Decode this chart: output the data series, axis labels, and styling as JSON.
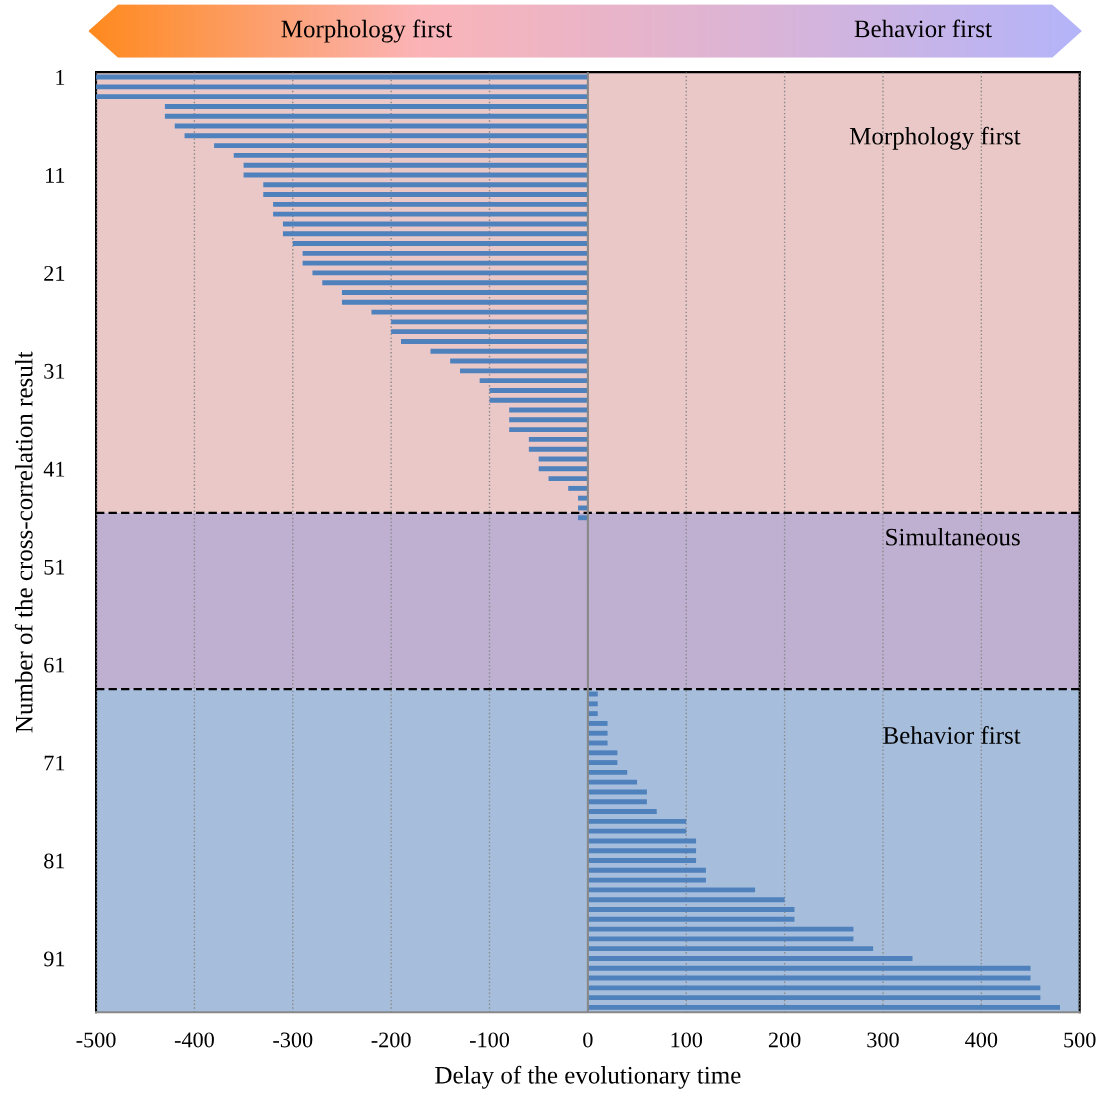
{
  "chart_data": {
    "type": "bar",
    "orientation": "horizontal",
    "xlabel": "Delay of the evolutionary time",
    "ylabel": "Number of the cross-correlation result",
    "annotations": [
      "Morphology first",
      "Behavior first"
    ],
    "x": [
      1,
      2,
      3,
      4,
      5,
      6,
      7,
      8,
      9,
      10,
      11,
      12,
      13,
      14,
      15,
      16,
      17,
      18,
      19,
      20,
      21,
      22,
      23,
      24,
      25,
      26,
      27,
      28,
      29,
      30,
      31,
      32,
      33,
      34,
      35,
      36,
      37,
      38,
      39,
      40,
      41,
      42,
      43,
      44,
      45,
      46,
      47,
      48,
      49,
      50,
      51,
      52,
      53,
      54,
      55,
      56,
      57,
      58,
      59,
      60,
      61,
      62,
      63,
      64,
      65,
      66,
      67,
      68,
      69,
      70,
      71,
      72,
      73,
      74,
      75,
      76,
      77,
      78,
      79,
      80,
      81,
      82,
      83,
      84,
      85,
      86,
      87,
      88,
      89,
      90,
      91,
      92,
      93,
      94,
      95,
      96
    ],
    "values": [
      -500,
      -500,
      -500,
      -430,
      -430,
      -420,
      -410,
      -380,
      -360,
      -350,
      -350,
      -330,
      -330,
      -320,
      -320,
      -310,
      -310,
      -300,
      -290,
      -290,
      -280,
      -270,
      -250,
      -250,
      -220,
      -200,
      -200,
      -190,
      -160,
      -140,
      -130,
      -110,
      -100,
      -100,
      -80,
      -80,
      -80,
      -60,
      -60,
      -50,
      -50,
      -40,
      -20,
      -10,
      -10,
      -10,
      0,
      0,
      0,
      0,
      0,
      0,
      0,
      0,
      0,
      0,
      0,
      0,
      0,
      0,
      0,
      0,
      0,
      10,
      10,
      10,
      20,
      20,
      20,
      30,
      30,
      40,
      50,
      60,
      60,
      70,
      100,
      100,
      110,
      110,
      110,
      120,
      120,
      170,
      200,
      210,
      210,
      270,
      270,
      290,
      330,
      450,
      450,
      460,
      460,
      480
    ],
    "color": "#4f81bd",
    "xlim": [
      -500,
      500
    ],
    "xticks": [
      -500,
      -400,
      -300,
      -200,
      -100,
      0,
      100,
      200,
      300,
      400,
      500
    ],
    "ylim": [
      96.5,
      0.5
    ],
    "yticks": [
      1,
      11,
      21,
      31,
      41,
      51,
      61,
      71,
      81,
      91
    ],
    "grid": "x",
    "bands": [
      {
        "axis": "y",
        "from": 0.5,
        "to": 45.5,
        "label": "Morphology first",
        "color": "#eac8c8"
      },
      {
        "axis": "y",
        "from": 45.5,
        "to": 63.5,
        "label": "Simultaneous",
        "color": "#bfb0d2"
      },
      {
        "axis": "y",
        "from": 63.5,
        "to": 96.5,
        "label": "Behavior first",
        "color": "#a6bedc"
      }
    ],
    "ref_lines": [
      {
        "axis": "y",
        "value": 45.5,
        "color": "#000000",
        "line_style": "dashed"
      },
      {
        "axis": "y",
        "value": 63.5,
        "color": "#000000",
        "line_style": "dashed"
      },
      {
        "axis": "x",
        "value": 0,
        "color": "#888888",
        "line_style": "solid"
      }
    ]
  }
}
